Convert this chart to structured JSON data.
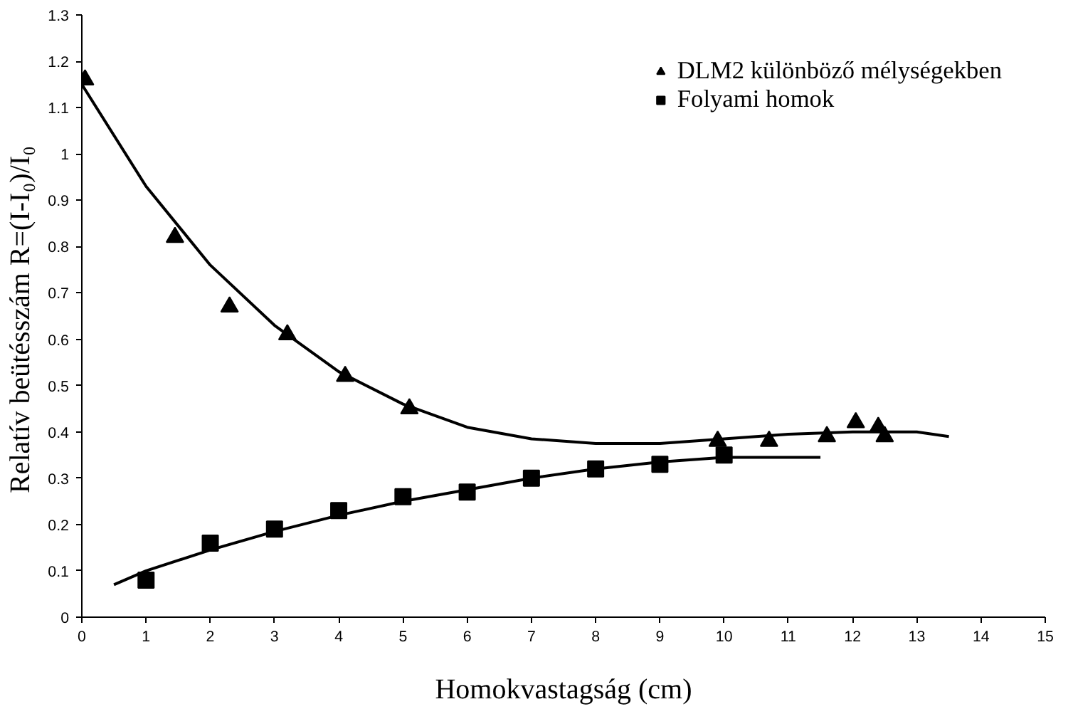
{
  "chart_data": {
    "type": "scatter",
    "xlabel": "Homokvastagság (cm)",
    "ylabel": "Relatív beütésszám  R=(I-I₀)/I₀",
    "xlim": [
      0,
      15
    ],
    "xticks": [
      0,
      1,
      2,
      3,
      4,
      5,
      6,
      7,
      8,
      9,
      10,
      11,
      12,
      13,
      14,
      15
    ],
    "ylim": [
      0,
      1.3
    ],
    "yticks": [
      0,
      0.1,
      0.2,
      0.3,
      0.4,
      0.5,
      0.6,
      0.7,
      0.8,
      0.9,
      1,
      1.1,
      1.2,
      1.3
    ],
    "grid": false,
    "legend": "top right",
    "series": [
      {
        "name": "DLM2 különböző mélységekben",
        "marker": "triangle",
        "color": "#000000",
        "x": [
          0.05,
          1.45,
          2.3,
          3.2,
          4.1,
          5.1,
          9.9,
          10.7,
          11.6,
          12.05,
          12.4,
          12.5
        ],
        "values": [
          1.16,
          0.82,
          0.67,
          0.61,
          0.52,
          0.45,
          0.38,
          0.38,
          0.39,
          0.42,
          0.41,
          0.39
        ]
      },
      {
        "name": "Folyami homok",
        "marker": "square",
        "color": "#000000",
        "x": [
          1,
          2,
          3,
          4,
          5,
          6,
          7,
          8,
          9,
          10
        ],
        "values": [
          0.08,
          0.16,
          0.19,
          0.23,
          0.26,
          0.27,
          0.3,
          0.32,
          0.33,
          0.35
        ]
      },
      {
        "type": "line",
        "color": "#000000",
        "x": [
          0,
          1,
          2,
          3,
          4,
          5,
          6,
          7,
          8,
          9,
          10,
          11,
          12,
          13,
          13.5
        ],
        "values": [
          1.15,
          0.93,
          0.76,
          0.63,
          0.53,
          0.46,
          0.41,
          0.385,
          0.375,
          0.375,
          0.385,
          0.395,
          0.4,
          0.4,
          0.39
        ]
      },
      {
        "type": "line",
        "color": "#000000",
        "x": [
          0.5,
          1,
          2,
          3,
          4,
          5,
          6,
          7,
          8,
          9,
          10,
          11.5
        ],
        "values": [
          0.07,
          0.1,
          0.145,
          0.185,
          0.22,
          0.25,
          0.275,
          0.3,
          0.32,
          0.335,
          0.345,
          0.345
        ]
      }
    ]
  }
}
